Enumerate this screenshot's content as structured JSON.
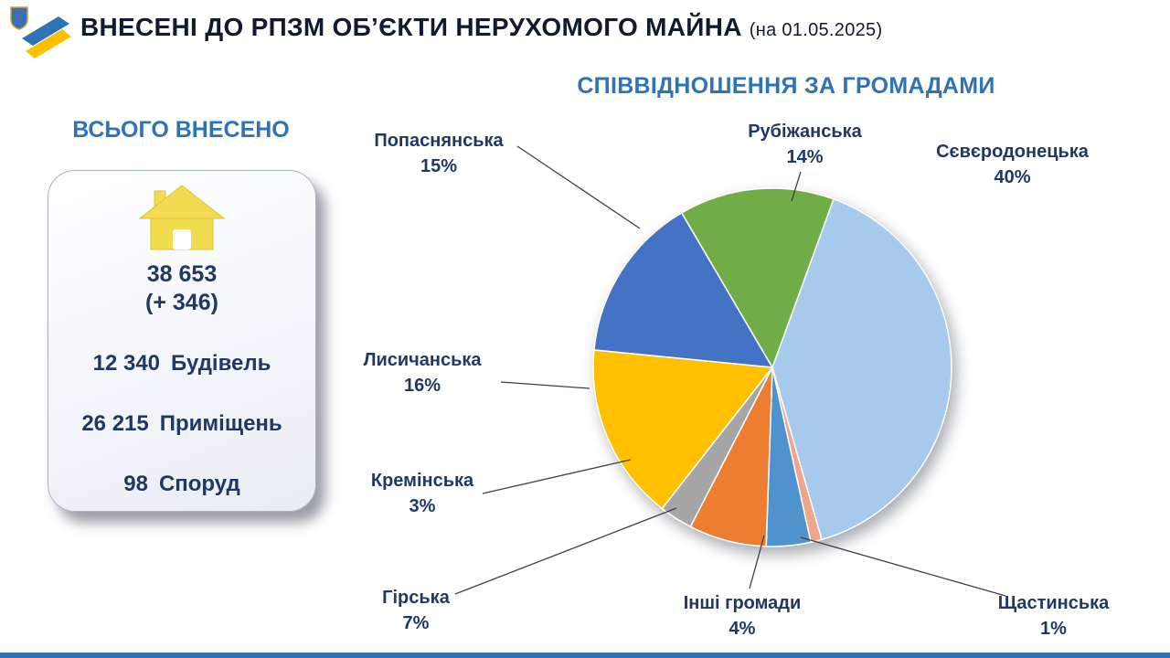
{
  "header": {
    "title": "ВНЕСЕНІ ДО РПЗМ ОБ’ЄКТИ НЕРУХОМОГО МАЙНА",
    "date_note": "(на 01.05.2025)"
  },
  "summary": {
    "heading": "ВСЬОГО ВНЕСЕНО",
    "total": "38 653",
    "delta": "(+ 346)",
    "items": [
      {
        "value": "12 340",
        "label": "Будівель"
      },
      {
        "value": "26 215",
        "label": "Приміщень"
      },
      {
        "value": "98",
        "label": "Споруд"
      }
    ]
  },
  "chart_data": {
    "type": "pie",
    "title": "СПІВВІДНОШЕННЯ ЗА ГРОМАДАМИ",
    "unit": "%",
    "start_angle_deg": 20,
    "legend_position": "labels-around",
    "slices": [
      {
        "id": "sieverodonetska",
        "label": "Сєвєродонецька",
        "value": 40,
        "pct_label": "40%",
        "color": "#A6C9EC"
      },
      {
        "id": "shchastynska",
        "label": "Щастинська",
        "value": 1,
        "pct_label": "1%",
        "color": "#F0A58B"
      },
      {
        "id": "inshi-hromady",
        "label": "Інші громади",
        "value": 4,
        "pct_label": "4%",
        "color": "#4F93CE"
      },
      {
        "id": "hirska",
        "label": "Гірська",
        "value": 7,
        "pct_label": "7%",
        "color": "#ED7D31"
      },
      {
        "id": "kreminska",
        "label": "Кремінська",
        "value": 3,
        "pct_label": "3%",
        "color": "#A6A6A6"
      },
      {
        "id": "lysychanska",
        "label": "Лисичанська",
        "value": 16,
        "pct_label": "16%",
        "color": "#FFC000"
      },
      {
        "id": "popasnianska",
        "label": "Попаснянська",
        "value": 15,
        "pct_label": "15%",
        "color": "#4472C4"
      },
      {
        "id": "rubizhanska",
        "label": "Рубіжанська",
        "value": 14,
        "pct_label": "14%",
        "color": "#70AD47"
      }
    ]
  },
  "colors": {
    "accent_blue": "#2E74B5",
    "text_navy": "#1F3864",
    "house_yellow": "#F1DC4F"
  }
}
